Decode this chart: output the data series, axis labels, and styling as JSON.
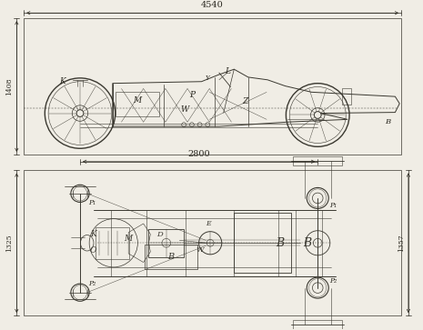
{
  "bg_color": "#f0ede5",
  "line_color": "#3a3830",
  "dim_color": "#2a2820",
  "figsize": [
    4.65,
    3.63
  ],
  "dpi": 100,
  "top_dim_text": "4540",
  "wheelbase_dim_text": "2800",
  "left_dim_side": "1408",
  "left_dim_plan": "1325",
  "right_dim_plan": "1357"
}
